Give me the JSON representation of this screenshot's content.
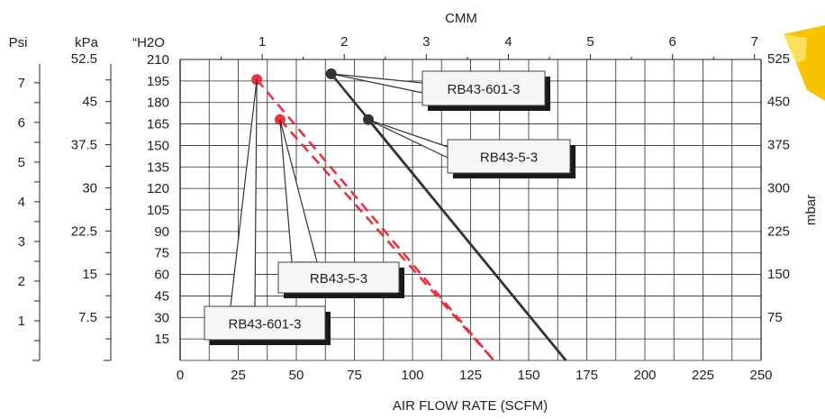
{
  "chart_data": {
    "type": "line",
    "x_axis": {
      "label": "AIR FLOW RATE (SCFM)",
      "range": [
        0,
        250
      ],
      "ticks": [
        0,
        25,
        50,
        75,
        100,
        125,
        150,
        175,
        200,
        225,
        250
      ]
    },
    "top_axis": {
      "label": "CMM",
      "ticks": [
        1,
        2,
        3,
        4,
        5,
        6,
        7
      ]
    },
    "y_axis": {
      "label": "“H2O",
      "range": [
        0,
        210
      ],
      "ticks": [
        15,
        30,
        45,
        60,
        75,
        90,
        105,
        120,
        135,
        150,
        165,
        180,
        195,
        210
      ]
    },
    "psi_axis": {
      "label": "Psi",
      "ticks": [
        1,
        2,
        3,
        4,
        5,
        6,
        7
      ]
    },
    "kpa_axis": {
      "label": "kPa",
      "ticks": [
        7.5,
        15,
        22.5,
        30,
        37.5,
        45,
        52.5
      ]
    },
    "mbar_axis": {
      "label": "mbar",
      "ticks": [
        75,
        150,
        225,
        300,
        375,
        450,
        525
      ]
    },
    "series": [
      {
        "name": "RB43-601-3",
        "style": "dashed",
        "color": "#e8323c",
        "marker": {
          "x": 33,
          "y": 196
        },
        "points": [
          {
            "x": 33,
            "y": 196
          },
          {
            "x": 135,
            "y": 0
          }
        ]
      },
      {
        "name": "RB43-5-3",
        "style": "dashed",
        "color": "#e8323c",
        "marker": {
          "x": 43,
          "y": 168
        },
        "points": [
          {
            "x": 43,
            "y": 168
          },
          {
            "x": 135,
            "y": 0
          }
        ]
      },
      {
        "name": "RB43-601-3",
        "style": "solid",
        "color": "#333333",
        "marker": {
          "x": 65,
          "y": 200
        },
        "points": [
          {
            "x": 65,
            "y": 200
          },
          {
            "x": 166,
            "y": 0
          }
        ]
      },
      {
        "name": "RB43-5-3",
        "style": "solid",
        "color": "#333333",
        "marker": {
          "x": 81,
          "y": 168
        },
        "points": [
          {
            "x": 81,
            "y": 168
          },
          {
            "x": 166,
            "y": 0
          }
        ]
      }
    ],
    "grid": true,
    "legend": "callouts"
  }
}
